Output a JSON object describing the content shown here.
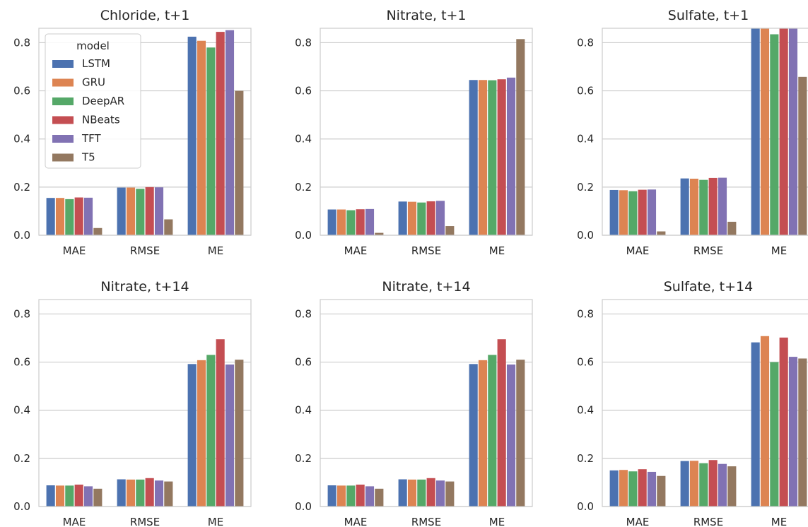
{
  "colors": {
    "LSTM": "#4c72b0",
    "GRU": "#dd8452",
    "DeepAR": "#55a868",
    "NBeats": "#c44e52",
    "TFT": "#8172b3",
    "T5": "#937860",
    "grid": "#cccccc",
    "background": "#ffffff"
  },
  "legend": {
    "title": "model",
    "entries": [
      "LSTM",
      "GRU",
      "DeepAR",
      "NBeats",
      "TFT",
      "T5"
    ]
  },
  "chart_data": [
    {
      "type": "bar",
      "title": "Chloride, t+1",
      "categories": [
        "MAE",
        "RMSE",
        "ME"
      ],
      "ylim": [
        0,
        0.86
      ],
      "yticks": [
        "0.0",
        "0.2",
        "0.4",
        "0.6",
        "0.8"
      ],
      "grid": true,
      "legend_position": "top-left",
      "series": [
        {
          "name": "LSTM",
          "values": [
            0.155,
            0.198,
            0.825
          ]
        },
        {
          "name": "GRU",
          "values": [
            0.155,
            0.198,
            0.808
          ]
        },
        {
          "name": "DeepAR",
          "values": [
            0.15,
            0.193,
            0.78
          ]
        },
        {
          "name": "NBeats",
          "values": [
            0.157,
            0.2,
            0.845
          ]
        },
        {
          "name": "TFT",
          "values": [
            0.156,
            0.199,
            0.852
          ]
        },
        {
          "name": "T5",
          "values": [
            0.03,
            0.066,
            0.6
          ]
        }
      ]
    },
    {
      "type": "bar",
      "title": "Nitrate, t+1",
      "categories": [
        "MAE",
        "RMSE",
        "ME"
      ],
      "ylim": [
        0,
        0.86
      ],
      "yticks": [
        "0.0",
        "0.2",
        "0.4",
        "0.6",
        "0.8"
      ],
      "grid": true,
      "series": [
        {
          "name": "LSTM",
          "values": [
            0.107,
            0.14,
            0.645
          ]
        },
        {
          "name": "GRU",
          "values": [
            0.107,
            0.139,
            0.645
          ]
        },
        {
          "name": "DeepAR",
          "values": [
            0.104,
            0.136,
            0.644
          ]
        },
        {
          "name": "NBeats",
          "values": [
            0.108,
            0.141,
            0.648
          ]
        },
        {
          "name": "TFT",
          "values": [
            0.109,
            0.143,
            0.655
          ]
        },
        {
          "name": "T5",
          "values": [
            0.01,
            0.038,
            0.815
          ]
        }
      ]
    },
    {
      "type": "bar",
      "title": "Sulfate, t+1",
      "categories": [
        "MAE",
        "RMSE",
        "ME"
      ],
      "ylim": [
        0,
        0.86
      ],
      "yticks": [
        "0.0",
        "0.2",
        "0.4",
        "0.6",
        "0.8"
      ],
      "grid": true,
      "series": [
        {
          "name": "LSTM",
          "values": [
            0.188,
            0.236,
            0.86
          ]
        },
        {
          "name": "GRU",
          "values": [
            0.187,
            0.235,
            0.86
          ]
        },
        {
          "name": "DeepAR",
          "values": [
            0.183,
            0.23,
            0.835
          ]
        },
        {
          "name": "NBeats",
          "values": [
            0.189,
            0.238,
            0.86
          ]
        },
        {
          "name": "TFT",
          "values": [
            0.19,
            0.239,
            0.86
          ]
        },
        {
          "name": "T5",
          "values": [
            0.016,
            0.056,
            0.658
          ]
        }
      ]
    },
    {
      "type": "bar",
      "title": "Nitrate, t+14",
      "categories": [
        "MAE",
        "RMSE",
        "ME"
      ],
      "ylim": [
        0,
        0.86
      ],
      "yticks": [
        "0.0",
        "0.2",
        "0.4",
        "0.6",
        "0.8"
      ],
      "grid": true,
      "series": [
        {
          "name": "LSTM",
          "values": [
            0.088,
            0.113,
            0.592
          ]
        },
        {
          "name": "GRU",
          "values": [
            0.087,
            0.112,
            0.608
          ]
        },
        {
          "name": "DeepAR",
          "values": [
            0.087,
            0.112,
            0.63
          ]
        },
        {
          "name": "NBeats",
          "values": [
            0.091,
            0.118,
            0.695
          ]
        },
        {
          "name": "TFT",
          "values": [
            0.084,
            0.108,
            0.59
          ]
        },
        {
          "name": "T5",
          "values": [
            0.074,
            0.104,
            0.61
          ]
        }
      ]
    },
    {
      "type": "bar",
      "title": "Nitrate, t+14",
      "categories": [
        "MAE",
        "RMSE",
        "ME"
      ],
      "ylim": [
        0,
        0.86
      ],
      "yticks": [
        "0.0",
        "0.2",
        "0.4",
        "0.6",
        "0.8"
      ],
      "grid": true,
      "series": [
        {
          "name": "LSTM",
          "values": [
            0.088,
            0.113,
            0.592
          ]
        },
        {
          "name": "GRU",
          "values": [
            0.087,
            0.112,
            0.608
          ]
        },
        {
          "name": "DeepAR",
          "values": [
            0.087,
            0.112,
            0.63
          ]
        },
        {
          "name": "NBeats",
          "values": [
            0.091,
            0.118,
            0.695
          ]
        },
        {
          "name": "TFT",
          "values": [
            0.084,
            0.108,
            0.59
          ]
        },
        {
          "name": "T5",
          "values": [
            0.074,
            0.104,
            0.61
          ]
        }
      ]
    },
    {
      "type": "bar",
      "title": "Sulfate, t+14",
      "categories": [
        "MAE",
        "RMSE",
        "ME"
      ],
      "ylim": [
        0,
        0.86
      ],
      "yticks": [
        "0.0",
        "0.2",
        "0.4",
        "0.6",
        "0.8"
      ],
      "grid": true,
      "series": [
        {
          "name": "LSTM",
          "values": [
            0.15,
            0.189,
            0.682
          ]
        },
        {
          "name": "GRU",
          "values": [
            0.152,
            0.19,
            0.708
          ]
        },
        {
          "name": "DeepAR",
          "values": [
            0.146,
            0.18,
            0.6
          ]
        },
        {
          "name": "NBeats",
          "values": [
            0.155,
            0.193,
            0.702
          ]
        },
        {
          "name": "TFT",
          "values": [
            0.144,
            0.177,
            0.622
          ]
        },
        {
          "name": "T5",
          "values": [
            0.127,
            0.167,
            0.615
          ]
        }
      ]
    }
  ]
}
